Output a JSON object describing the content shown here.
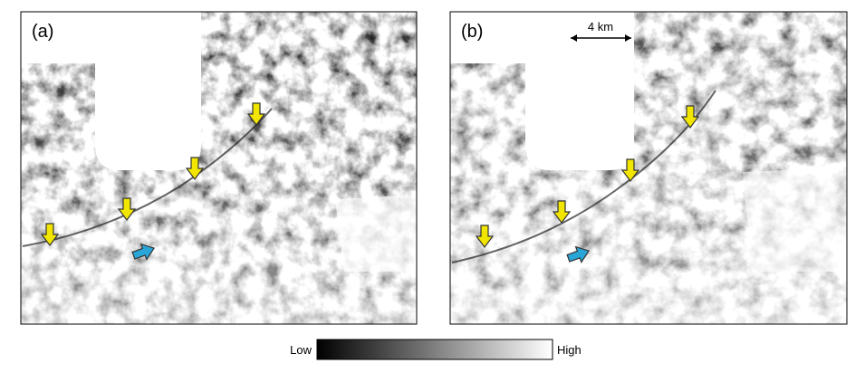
{
  "panels": [
    {
      "label": "(a)"
    },
    {
      "label": "(b)",
      "scale_bar": "4 km"
    }
  ],
  "colorbar": {
    "low": "Low",
    "high": "High"
  }
}
